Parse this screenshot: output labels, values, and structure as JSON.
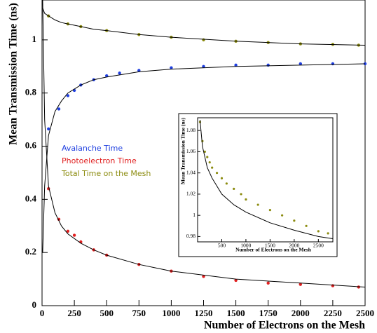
{
  "chart_data": [
    {
      "type": "scatter",
      "xlabel": "Number of Electrons on the Mesh",
      "ylabel": "Mean Transmission Time (ns)",
      "xlim": [
        0,
        2500
      ],
      "ylim": [
        0,
        1.15
      ],
      "xticks": [
        0,
        250,
        500,
        750,
        1000,
        1250,
        1500,
        1750,
        2000,
        2250,
        2500
      ],
      "yticks": [
        0,
        0.2,
        0.4,
        0.6,
        0.8,
        1
      ],
      "legend": "center-left",
      "series": [
        {
          "name": "Avalanche Time",
          "color": "#1f3fe0",
          "style": "points",
          "x": [
            50,
            130,
            200,
            250,
            300,
            400,
            500,
            600,
            750,
            1000,
            1250,
            1500,
            1750,
            2000,
            2250,
            2500
          ],
          "values": [
            0.665,
            0.74,
            0.79,
            0.81,
            0.83,
            0.85,
            0.865,
            0.875,
            0.885,
            0.895,
            0.9,
            0.905,
            0.905,
            0.91,
            0.91,
            0.91
          ]
        },
        {
          "name": "Photoelectron Time",
          "color": "#e02020",
          "style": "points",
          "x": [
            50,
            130,
            200,
            250,
            300,
            400,
            500,
            750,
            1000,
            1250,
            1500,
            1750,
            2000,
            2250,
            2450
          ],
          "values": [
            0.44,
            0.325,
            0.28,
            0.265,
            0.24,
            0.21,
            0.19,
            0.155,
            0.13,
            0.11,
            0.095,
            0.085,
            0.08,
            0.075,
            0.07
          ]
        },
        {
          "name": "Total Time on the Mesh",
          "color": "#8c8c10",
          "style": "points",
          "x": [
            50,
            200,
            300,
            500,
            750,
            1000,
            1250,
            1500,
            1750,
            2000,
            2250,
            2450
          ],
          "values": [
            1.09,
            1.06,
            1.05,
            1.035,
            1.02,
            1.01,
            1.0,
            0.995,
            0.99,
            0.985,
            0.983,
            0.98
          ]
        },
        {
          "color": "#000000",
          "style": "line",
          "x": [
            5,
            20,
            50,
            100,
            150,
            200,
            300,
            400,
            500,
            750,
            1000,
            1500,
            2000,
            2500
          ],
          "values": [
            0.2,
            0.45,
            0.64,
            0.73,
            0.77,
            0.8,
            0.83,
            0.85,
            0.86,
            0.88,
            0.89,
            0.9,
            0.905,
            0.91
          ]
        },
        {
          "color": "#000000",
          "style": "line",
          "x": [
            5,
            20,
            50,
            100,
            150,
            200,
            300,
            400,
            500,
            750,
            1000,
            1500,
            2000,
            2500
          ],
          "values": [
            1.15,
            0.7,
            0.45,
            0.35,
            0.3,
            0.27,
            0.235,
            0.21,
            0.19,
            0.155,
            0.13,
            0.1,
            0.085,
            0.07
          ]
        },
        {
          "color": "#000000",
          "style": "line",
          "x": [
            5,
            20,
            50,
            100,
            150,
            200,
            300,
            400,
            500,
            750,
            1000,
            1500,
            2000,
            2500
          ],
          "values": [
            1.12,
            1.1,
            1.09,
            1.075,
            1.065,
            1.06,
            1.05,
            1.04,
            1.035,
            1.02,
            1.01,
            0.995,
            0.985,
            0.98
          ]
        }
      ]
    },
    {
      "type": "scatter",
      "xlabel": "Number of Electrons on the Mesh",
      "ylabel": "Mean Transmission Time (ns)",
      "xlim": [
        0,
        2800
      ],
      "ylim": [
        0.975,
        1.092
      ],
      "xticks": [
        500,
        1000,
        1500,
        2000,
        2500
      ],
      "yticks": [
        0.98,
        1,
        1.02,
        1.04,
        1.06,
        1.08
      ],
      "series": [
        {
          "color": "#8c8c10",
          "style": "points",
          "x": [
            50,
            100,
            150,
            200,
            250,
            300,
            400,
            500,
            600,
            750,
            900,
            1000,
            1250,
            1500,
            1750,
            2000,
            2250,
            2500,
            2700
          ],
          "values": [
            1.088,
            1.07,
            1.06,
            1.055,
            1.05,
            1.045,
            1.04,
            1.035,
            1.03,
            1.025,
            1.02,
            1.015,
            1.01,
            1.005,
            1.0,
            0.995,
            0.99,
            0.985,
            0.983
          ]
        },
        {
          "color": "#000000",
          "style": "line",
          "x": [
            50,
            100,
            200,
            300,
            500,
            750,
            1000,
            1500,
            2000,
            2500,
            2800
          ],
          "values": [
            1.09,
            1.065,
            1.045,
            1.035,
            1.02,
            1.01,
            1.003,
            0.993,
            0.986,
            0.98,
            0.978
          ]
        }
      ]
    }
  ]
}
